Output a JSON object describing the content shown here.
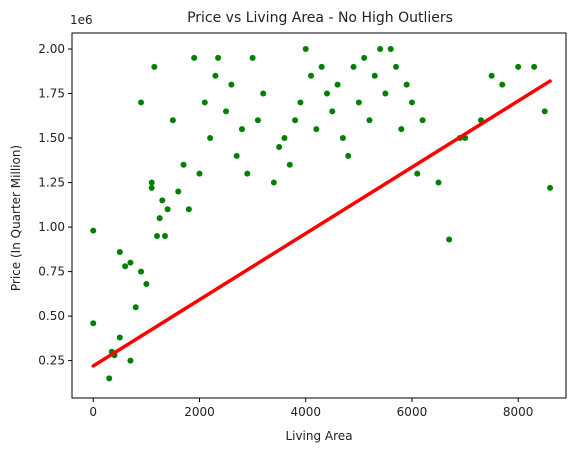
{
  "chart_data": {
    "type": "scatter",
    "title": "Price vs Living Area - No High Outliers",
    "xlabel": "Living Area",
    "ylabel": "Price (In Quarter Million)",
    "y_offset_label": "1e6",
    "xlim": [
      -400,
      8900
    ],
    "ylim": [
      0.04,
      2.09
    ],
    "x_ticks": [
      0,
      2000,
      4000,
      6000,
      8000
    ],
    "x_tick_labels": [
      "0",
      "2000",
      "4000",
      "6000",
      "8000"
    ],
    "y_ticks": [
      0.25,
      0.5,
      0.75,
      1.0,
      1.25,
      1.5,
      1.75,
      2.0
    ],
    "y_tick_labels": [
      "0.25",
      "0.50",
      "0.75",
      "1.00",
      "1.25",
      "1.50",
      "1.75",
      "2.00"
    ],
    "grid": false,
    "point_color": "#008000",
    "line_color": "#ff0000",
    "regression_line": {
      "x": [
        0,
        8600
      ],
      "y": [
        0.22,
        1.82
      ]
    },
    "points": [
      [
        0,
        0.98
      ],
      [
        0,
        0.46
      ],
      [
        300,
        0.15
      ],
      [
        350,
        0.3
      ],
      [
        400,
        0.28
      ],
      [
        500,
        0.38
      ],
      [
        500,
        0.86
      ],
      [
        600,
        0.78
      ],
      [
        700,
        0.8
      ],
      [
        700,
        0.25
      ],
      [
        800,
        0.55
      ],
      [
        900,
        1.7
      ],
      [
        900,
        0.75
      ],
      [
        1000,
        0.68
      ],
      [
        1100,
        1.25
      ],
      [
        1100,
        1.22
      ],
      [
        1150,
        1.9
      ],
      [
        1200,
        0.95
      ],
      [
        1250,
        1.05
      ],
      [
        1300,
        1.15
      ],
      [
        1350,
        0.95
      ],
      [
        1400,
        1.1
      ],
      [
        1500,
        1.6
      ],
      [
        1600,
        1.2
      ],
      [
        1700,
        1.35
      ],
      [
        1800,
        1.1
      ],
      [
        1900,
        1.95
      ],
      [
        2000,
        1.3
      ],
      [
        2100,
        1.7
      ],
      [
        2200,
        1.5
      ],
      [
        2300,
        1.85
      ],
      [
        2350,
        1.95
      ],
      [
        2500,
        1.65
      ],
      [
        2600,
        1.8
      ],
      [
        2700,
        1.4
      ],
      [
        2800,
        1.55
      ],
      [
        2900,
        1.3
      ],
      [
        3000,
        1.95
      ],
      [
        3100,
        1.6
      ],
      [
        3200,
        1.75
      ],
      [
        3400,
        1.25
      ],
      [
        3500,
        1.45
      ],
      [
        3600,
        1.5
      ],
      [
        3700,
        1.35
      ],
      [
        3800,
        1.6
      ],
      [
        3900,
        1.7
      ],
      [
        4000,
        2.0
      ],
      [
        4100,
        1.85
      ],
      [
        4200,
        1.55
      ],
      [
        4300,
        1.9
      ],
      [
        4400,
        1.75
      ],
      [
        4500,
        1.65
      ],
      [
        4600,
        1.8
      ],
      [
        4700,
        1.5
      ],
      [
        4800,
        1.4
      ],
      [
        4900,
        1.9
      ],
      [
        5000,
        1.7
      ],
      [
        5100,
        1.95
      ],
      [
        5200,
        1.6
      ],
      [
        5300,
        1.85
      ],
      [
        5400,
        2.0
      ],
      [
        5500,
        1.75
      ],
      [
        5600,
        2.0
      ],
      [
        5700,
        1.9
      ],
      [
        5800,
        1.55
      ],
      [
        5900,
        1.8
      ],
      [
        6000,
        1.7
      ],
      [
        6100,
        1.3
      ],
      [
        6200,
        1.6
      ],
      [
        6500,
        1.25
      ],
      [
        6700,
        0.93
      ],
      [
        6900,
        1.5
      ],
      [
        7000,
        1.5
      ],
      [
        7300,
        1.6
      ],
      [
        7700,
        1.8
      ],
      [
        8000,
        1.9
      ],
      [
        8300,
        1.9
      ],
      [
        8500,
        1.65
      ],
      [
        8600,
        1.22
      ],
      [
        7500,
        1.85
      ]
    ]
  }
}
